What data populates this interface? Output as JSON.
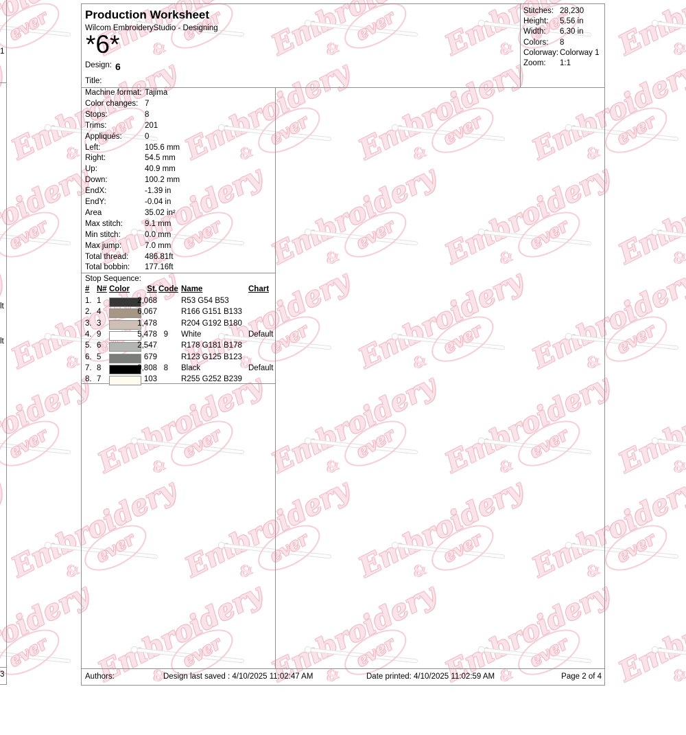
{
  "header": {
    "title": "Production Worksheet",
    "subtitle": "Wilcom EmbroideryStudio - Designing",
    "design_code": "*6*",
    "design_label": "Design:",
    "design_value": "6",
    "title_label": "Title:"
  },
  "stats": {
    "rows": [
      {
        "label": "Stitches:",
        "value": "28,230"
      },
      {
        "label": "Height:",
        "value": "5.56 in"
      },
      {
        "label": "Width:",
        "value": "6.30 in"
      },
      {
        "label": "Colors:",
        "value": "8"
      },
      {
        "label": "Colorway:",
        "value": "Colorway 1"
      },
      {
        "label": "Zoom:",
        "value": "1:1"
      }
    ]
  },
  "details": {
    "rows": [
      {
        "label": "Machine format:",
        "value": "Tajima"
      },
      {
        "label": "Color changes:",
        "value": "7"
      },
      {
        "label": "Stops:",
        "value": "8"
      },
      {
        "label": "Trims:",
        "value": "201"
      },
      {
        "label": "Appliqués:",
        "value": "0"
      },
      {
        "label": "Left:",
        "value": "105.6 mm"
      },
      {
        "label": "Right:",
        "value": "54.5 mm"
      },
      {
        "label": "Up:",
        "value": "40.9 mm"
      },
      {
        "label": "Down:",
        "value": "100.2 mm"
      },
      {
        "label": "EndX:",
        "value": "-1.39 in"
      },
      {
        "label": "EndY:",
        "value": "-0.04 in"
      },
      {
        "label": "Area",
        "value": "35.02 in²"
      },
      {
        "label": "Max stitch:",
        "value": "9.1 mm"
      },
      {
        "label": "Min stitch:",
        "value": "0.0 mm"
      },
      {
        "label": "Max jump:",
        "value": "7.0 mm"
      },
      {
        "label": "Total thread:",
        "value": "486.81ft"
      },
      {
        "label": "Total bobbin:",
        "value": "177.16ft"
      }
    ]
  },
  "stop_sequence": {
    "title": "Stop Sequence:",
    "columns": {
      "num": "#",
      "n": "N#",
      "color": "Color",
      "st": "St.",
      "code": "Code",
      "name": "Name",
      "chart": "Chart"
    },
    "rows": [
      {
        "num": "1.",
        "n": "1",
        "color": "#353635",
        "st": "2,068",
        "code": "",
        "name": "R53 G54 B53",
        "chart": ""
      },
      {
        "num": "2.",
        "n": "4",
        "color": "#a69785",
        "st": "6,067",
        "code": "",
        "name": "R166 G151 B133",
        "chart": ""
      },
      {
        "num": "3.",
        "n": "3",
        "color": "#ccc0b4",
        "st": "1,478",
        "code": "",
        "name": "R204 G192 B180",
        "chart": ""
      },
      {
        "num": "4.",
        "n": "9",
        "color": "#ffffff",
        "st": "5,478",
        "code": "9",
        "name": "White",
        "chart": "Default"
      },
      {
        "num": "5.",
        "n": "6",
        "color": "#b2b5b2",
        "st": "2,547",
        "code": "",
        "name": "R178 G181 B178",
        "chart": ""
      },
      {
        "num": "6.",
        "n": "5",
        "color": "#7b7d7b",
        "st": "679",
        "code": "",
        "name": "R123 G125 B123",
        "chart": ""
      },
      {
        "num": "7.",
        "n": "8",
        "color": "#000000",
        "st": "9,808",
        "code": "8",
        "name": "Black",
        "chart": "Default"
      },
      {
        "num": "8.",
        "n": "7",
        "color": "#fffcef",
        "st": "103",
        "code": "",
        "name": "R255 G252 B239",
        "chart": ""
      }
    ]
  },
  "footer": {
    "authors_label": "Authors:",
    "last_saved": "Design last saved : 4/10/2025 11:02:47 AM",
    "printed": "Date printed: 4/10/2025 11:02:59 AM",
    "page": "Page 2 of 4"
  },
  "fragments": {
    "t1": "1",
    "t2": "lt",
    "t3": "lt",
    "t4": "3"
  },
  "watermark": {
    "line1": "Embroidery",
    "amp": "&",
    "line2": "ever",
    "outline_color": "#f0bcc7",
    "fill_color": "#fbe4e9"
  }
}
